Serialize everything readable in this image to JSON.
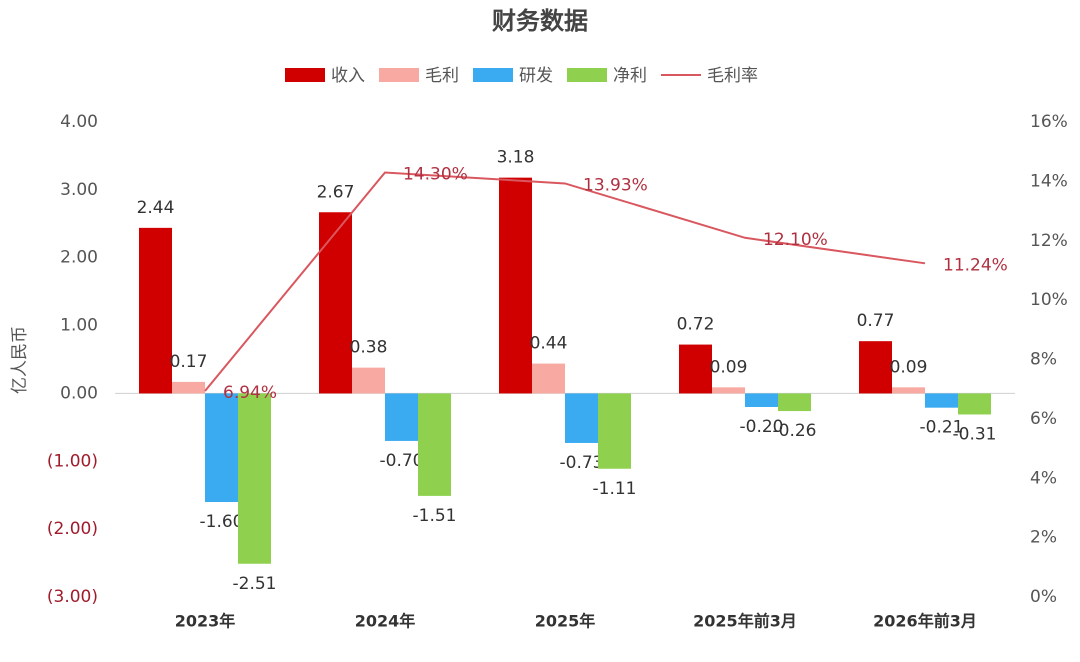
{
  "chart_data": {
    "type": "bar",
    "title": "财务数据",
    "y_label": "亿人民币",
    "categories": [
      "2023年",
      "2024年",
      "2025年",
      "2025年前3月",
      "2026年前3月"
    ],
    "series": [
      {
        "name": "收入",
        "color": "#d00000",
        "values": [
          2.44,
          2.67,
          3.18,
          0.72,
          0.77
        ],
        "value_labels": [
          "2.44",
          "2.67",
          "3.18",
          "0.72",
          "0.77"
        ]
      },
      {
        "name": "毛利",
        "color": "#f8aaa2",
        "values": [
          0.17,
          0.38,
          0.44,
          0.09,
          0.09
        ],
        "value_labels": [
          "0.17",
          "0.38",
          "0.44",
          "0.09",
          "0.09"
        ]
      },
      {
        "name": "研发",
        "color": "#3aabf0",
        "values": [
          -1.6,
          -0.7,
          -0.73,
          -0.2,
          -0.21
        ],
        "value_labels": [
          "-1.60",
          "-0.70",
          "-0.73",
          "-0.20",
          "-0.21"
        ]
      },
      {
        "name": "净利",
        "color": "#8fd14f",
        "values": [
          -2.51,
          -1.51,
          -1.11,
          -0.26,
          -0.31
        ],
        "value_labels": [
          "-2.51",
          "-1.51",
          "-1.11",
          "-0.26",
          "-0.31"
        ]
      },
      {
        "name": "毛利率",
        "type": "line",
        "axis": "y2",
        "color": "#d9575f",
        "values": [
          6.94,
          14.3,
          13.93,
          12.1,
          11.24
        ],
        "value_labels": [
          "6.94%",
          "14.30%",
          "13.93%",
          "12.10%",
          "11.24%"
        ]
      }
    ],
    "ylim": [
      -3,
      4
    ],
    "yticks": [
      {
        "value": -3,
        "label": "(3.00)"
      },
      {
        "value": -2,
        "label": "(2.00)"
      },
      {
        "value": -1,
        "label": "(1.00)"
      },
      {
        "value": 0,
        "label": "0.00"
      },
      {
        "value": 1,
        "label": "1.00"
      },
      {
        "value": 2,
        "label": "2.00"
      },
      {
        "value": 3,
        "label": "3.00"
      },
      {
        "value": 4,
        "label": "4.00"
      }
    ],
    "y2lim": [
      0,
      16
    ],
    "y2ticks": [
      {
        "value": 0,
        "label": "0%"
      },
      {
        "value": 2,
        "label": "2%"
      },
      {
        "value": 4,
        "label": "4%"
      },
      {
        "value": 6,
        "label": "6%"
      },
      {
        "value": 8,
        "label": "8%"
      },
      {
        "value": 10,
        "label": "10%"
      },
      {
        "value": 12,
        "label": "12%"
      },
      {
        "value": 14,
        "label": "14%"
      },
      {
        "value": 16,
        "label": "16%"
      }
    ],
    "legend": "top"
  }
}
